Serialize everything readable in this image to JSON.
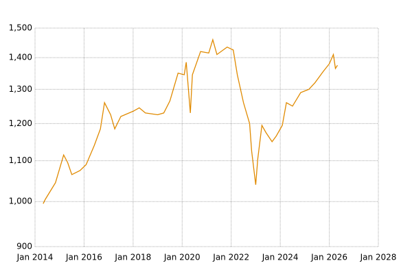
{
  "chart_data": {
    "type": "line",
    "x": [
      "2014-05",
      "2014-06",
      "2014-11",
      "2015-03",
      "2015-05",
      "2015-07",
      "2015-11",
      "2016-02",
      "2016-06",
      "2016-09",
      "2016-11",
      "2017-02",
      "2017-04",
      "2017-07",
      "2018-01",
      "2018-04",
      "2018-07",
      "2019-01",
      "2019-04",
      "2019-07",
      "2019-11",
      "2020-02",
      "2020-03",
      "2020-05",
      "2020-06",
      "2020-10",
      "2021-02",
      "2021-04",
      "2021-06",
      "2021-11",
      "2022-02",
      "2022-04",
      "2022-07",
      "2022-10",
      "2022-11",
      "2023-01",
      "2023-02",
      "2023-04",
      "2023-06",
      "2023-09",
      "2023-11",
      "2024-02",
      "2024-04",
      "2024-07",
      "2024-11",
      "2025-03",
      "2025-06",
      "2025-10",
      "2026-01",
      "2026-03",
      "2026-04",
      "2026-05"
    ],
    "series": [
      {
        "color": "#e08a00",
        "values": [
          995,
          1005,
          1045,
          1115,
          1095,
          1065,
          1075,
          1090,
          1140,
          1185,
          1260,
          1225,
          1185,
          1220,
          1235,
          1245,
          1230,
          1225,
          1230,
          1265,
          1350,
          1345,
          1385,
          1230,
          1345,
          1420,
          1415,
          1460,
          1410,
          1435,
          1425,
          1345,
          1260,
          1200,
          1125,
          1040,
          1105,
          1195,
          1175,
          1150,
          1165,
          1195,
          1260,
          1250,
          1290,
          1300,
          1320,
          1355,
          1380,
          1410,
          1365,
          1375
        ]
      }
    ],
    "xlim": [
      "2014-01",
      "2028-01"
    ],
    "xticks": [
      {
        "value": "2014-01",
        "label": "Jan 2014"
      },
      {
        "value": "2016-01",
        "label": "Jan 2016"
      },
      {
        "value": "2018-01",
        "label": "Jan 2018"
      },
      {
        "value": "2020-01",
        "label": "Jan 2020"
      },
      {
        "value": "2022-01",
        "label": "Jan 2022"
      },
      {
        "value": "2024-01",
        "label": "Jan 2024"
      },
      {
        "value": "2026-01",
        "label": "Jan 2026"
      },
      {
        "value": "2028-01",
        "label": "Jan 2028"
      }
    ],
    "ylim": [
      900,
      1500
    ],
    "yticks": [
      900,
      {
        "value": 1000,
        "label": "1,000"
      },
      {
        "value": 1100,
        "label": "1,100"
      },
      {
        "value": 1200,
        "label": "1,200"
      },
      {
        "value": 1300,
        "label": "1,300"
      },
      {
        "value": 1400,
        "label": "1,400"
      },
      {
        "value": 1500,
        "label": "1,500"
      }
    ],
    "log_scale": true,
    "grid": true
  }
}
